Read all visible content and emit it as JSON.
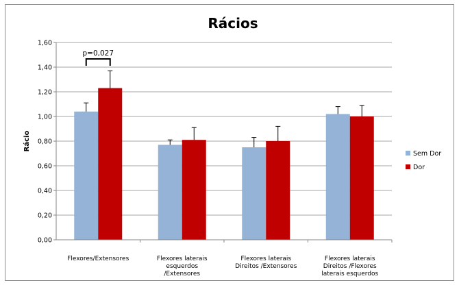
{
  "chart_data": {
    "type": "bar",
    "title": "Rácios",
    "xlabel": "",
    "ylabel": "Rácio",
    "ylim": [
      0,
      1.6
    ],
    "yticks": [
      "0,00",
      "0,20",
      "0,40",
      "0,60",
      "0,80",
      "1,00",
      "1,20",
      "1,40",
      "1,60"
    ],
    "grid": true,
    "legend_position": "right",
    "categories": [
      [
        "Flexores/Extensores"
      ],
      [
        "Flexores laterais",
        "esquerdos",
        "/Extensores"
      ],
      [
        "Flexores laterais",
        "Direitos /Extensores"
      ],
      [
        "Flexores laterais",
        "Direitos /Flexores",
        "laterais esquerdos"
      ]
    ],
    "series": [
      {
        "name": "Sem Dor",
        "color": "#95B3D7",
        "values": [
          1.04,
          0.77,
          0.75,
          1.02
        ],
        "errors": [
          0.07,
          0.04,
          0.08,
          0.06
        ]
      },
      {
        "name": "Dor",
        "color": "#C00000",
        "values": [
          1.23,
          0.81,
          0.8,
          1.0
        ],
        "errors": [
          0.14,
          0.1,
          0.12,
          0.09
        ]
      }
    ],
    "annotations": [
      {
        "text": "p=0,027",
        "category_index": 0
      }
    ]
  }
}
